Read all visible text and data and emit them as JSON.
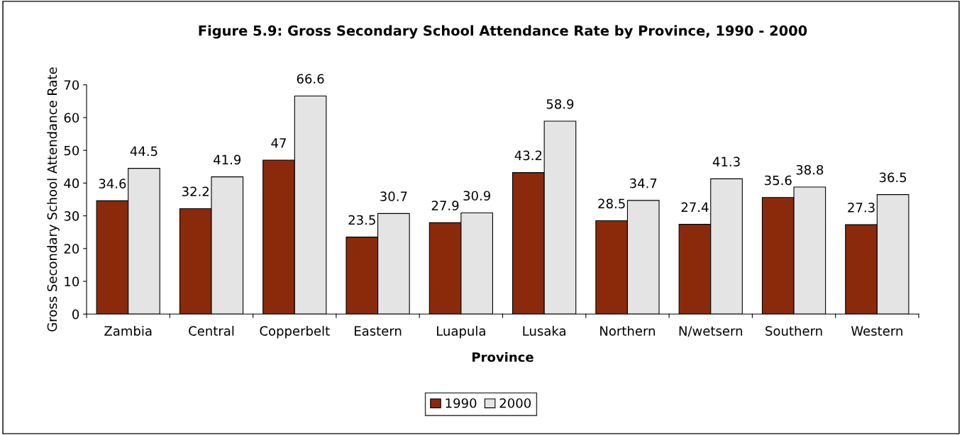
{
  "chart_data": {
    "type": "bar",
    "title": "Figure 5.9: Gross Secondary School Attendance Rate by Province, 1990 - 2000",
    "xlabel": "Province",
    "ylabel": "Gross Secondary School Attendance Rate",
    "categories": [
      "Zambia",
      "Central",
      "Copperbelt",
      "Eastern",
      "Luapula",
      "Lusaka",
      "Northern",
      "N/wetsern",
      "Southern",
      "Western"
    ],
    "series": [
      {
        "name": "1990",
        "color": "#8b2a0a",
        "values": [
          34.6,
          32.2,
          47,
          23.5,
          27.9,
          43.2,
          28.5,
          27.4,
          35.6,
          27.3
        ]
      },
      {
        "name": "2000",
        "color": "#e4e4e4",
        "values": [
          44.5,
          41.9,
          66.6,
          30.7,
          30.9,
          58.9,
          34.7,
          41.3,
          38.8,
          36.5
        ]
      }
    ],
    "ylim": [
      0,
      70
    ],
    "yticks": [
      0,
      10,
      20,
      30,
      40,
      50,
      60,
      70
    ],
    "data_labels": true,
    "grid": false,
    "legend": "bottom"
  }
}
